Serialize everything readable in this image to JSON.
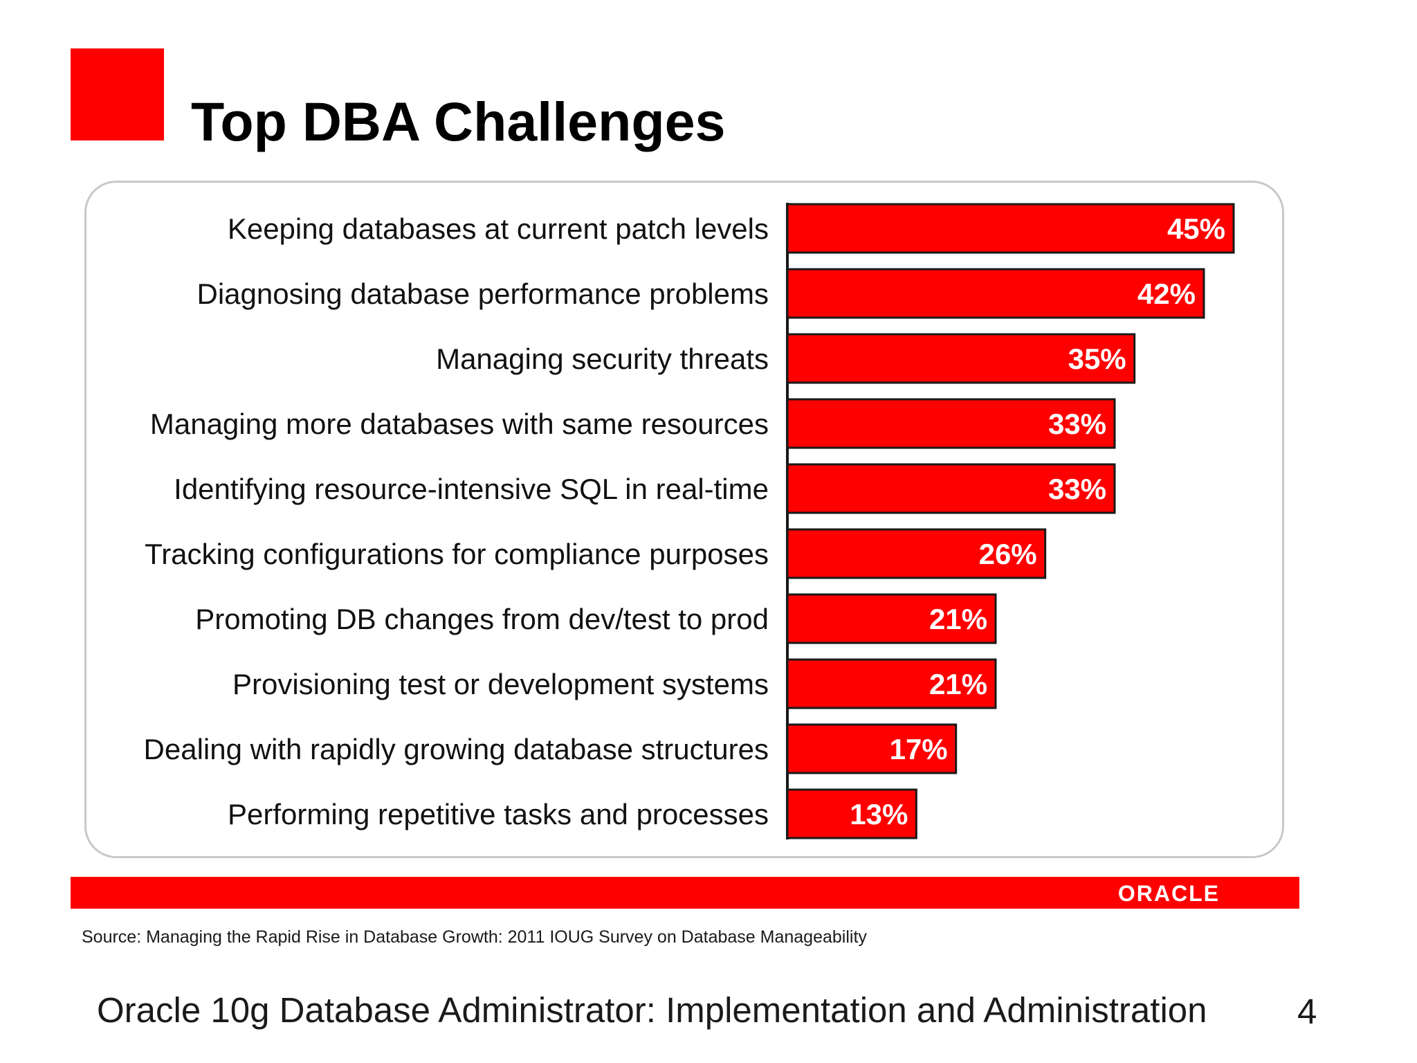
{
  "slide": {
    "title": "Top DBA Challenges",
    "logo_text": "ORACLE",
    "source": "Source: Managing the Rapid Rise in Database Growth: 2011 IOUG Survey on Database Manageability",
    "caption": "Oracle 10g Database Administrator: Implementation and Administration",
    "page_number": "4"
  },
  "colors": {
    "accent": "#ff0000",
    "bar_fill": "#ff0000",
    "bar_border": "#1a1a1a"
  },
  "chart_data": {
    "type": "bar",
    "orientation": "horizontal",
    "title": "",
    "xlabel": "",
    "ylabel": "",
    "xlim": [
      0,
      45
    ],
    "grid": false,
    "categories": [
      "Keeping databases at current patch levels",
      "Diagnosing database performance problems",
      "Managing security threats",
      "Managing more databases with same resources",
      "Identifying resource-intensive SQL in real-time",
      "Tracking configurations for compliance purposes",
      "Promoting DB changes from dev/test to prod",
      "Provisioning test or development systems",
      "Dealing with rapidly growing database structures",
      "Performing repetitive tasks and processes"
    ],
    "values": [
      45,
      42,
      35,
      33,
      33,
      26,
      21,
      21,
      17,
      13
    ],
    "value_labels": [
      "45%",
      "42%",
      "35%",
      "33%",
      "33%",
      "26%",
      "21%",
      "21%",
      "17%",
      "13%"
    ]
  }
}
